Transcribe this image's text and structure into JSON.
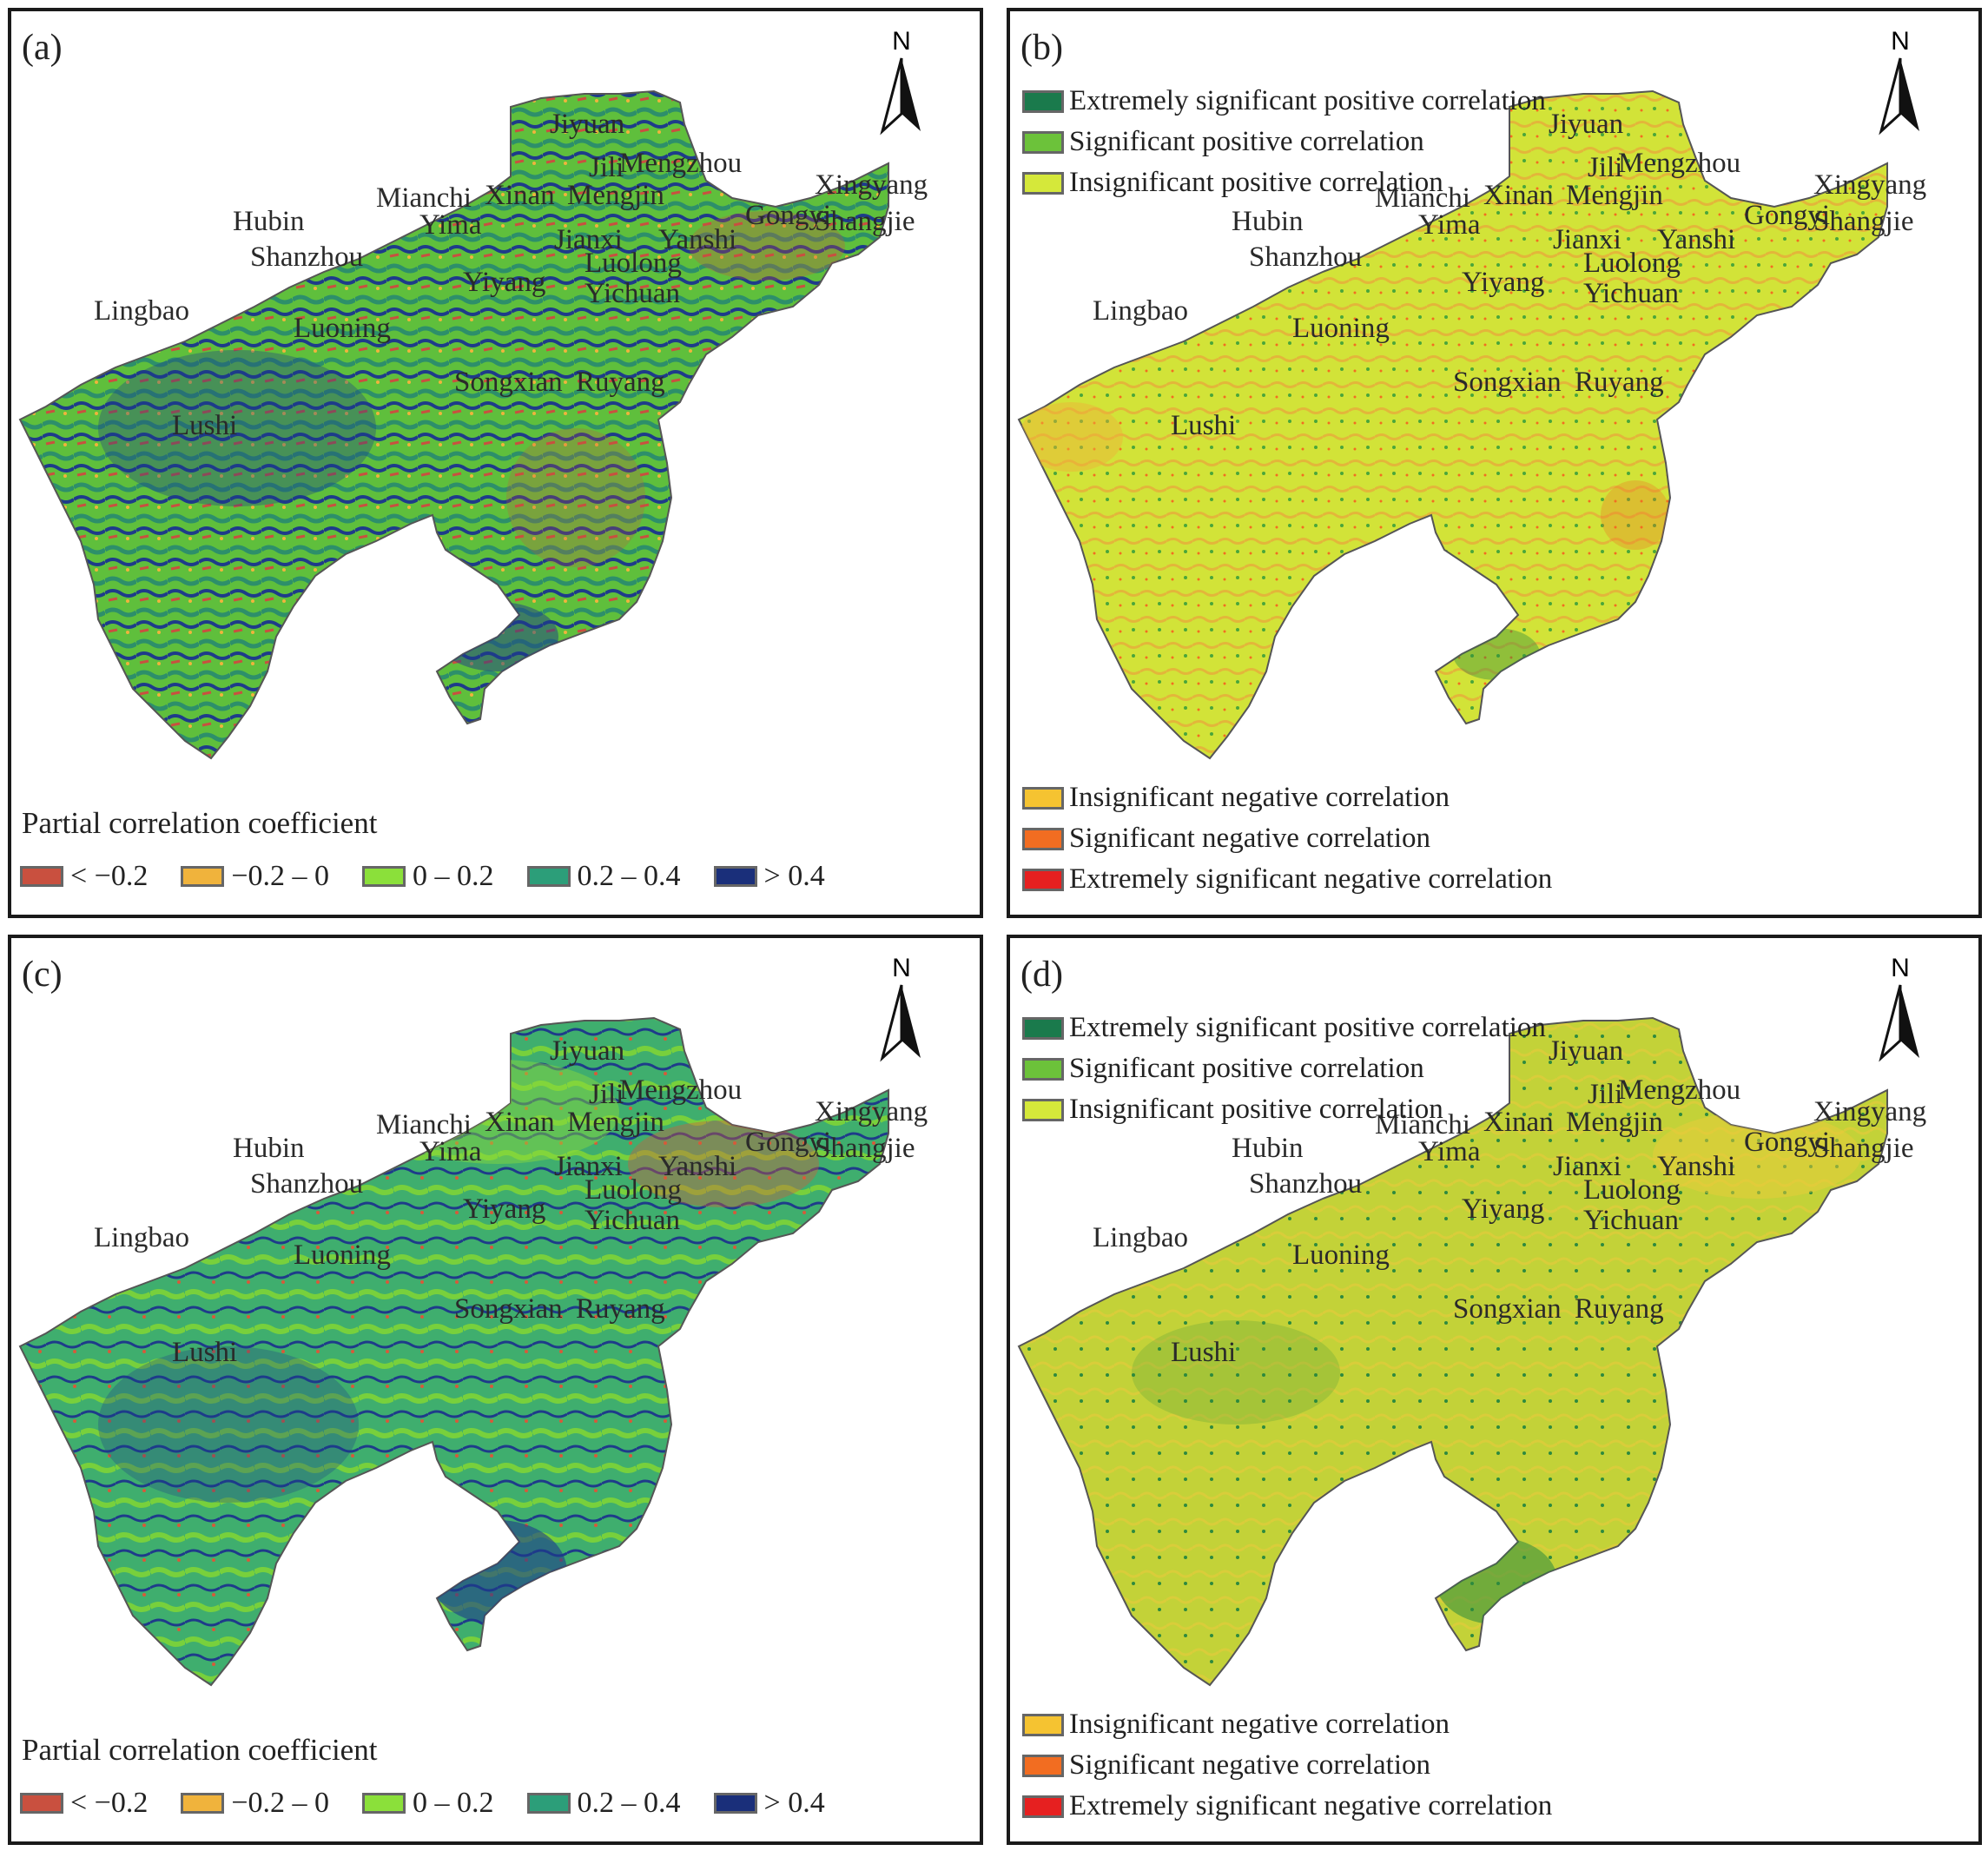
{
  "panels": [
    {
      "id": "a",
      "label": "(a)",
      "type": "coefficient",
      "fill_colors": [
        "#6cc93a",
        "#2e9a6a",
        "#1e3b8a",
        "#c9503f"
      ]
    },
    {
      "id": "b",
      "label": "(b)",
      "type": "significance",
      "fill_colors": [
        "#d4e23a",
        "#e8b43a",
        "#c7da34"
      ]
    },
    {
      "id": "c",
      "label": "(c)",
      "type": "coefficient",
      "fill_colors": [
        "#3fae6e",
        "#78d03c",
        "#1e3b8a",
        "#d65a3a"
      ]
    },
    {
      "id": "d",
      "label": "(d)",
      "type": "significance",
      "fill_colors": [
        "#c3d238",
        "#e0c83a",
        "#2e8a3e"
      ]
    }
  ],
  "north_label": "N",
  "coefficient_legend": {
    "title": "Partial correlation coefficient",
    "items": [
      {
        "label": "< −0.2",
        "color": "#c9503f"
      },
      {
        "label": "−0.2 – 0",
        "color": "#f0b33c"
      },
      {
        "label": "0 – 0.2",
        "color": "#8be03a"
      },
      {
        "label": "0.2 – 0.4",
        "color": "#2c9e79"
      },
      {
        "label": "> 0.4",
        "color": "#1a2f7a"
      }
    ]
  },
  "significance_legend": {
    "positive": [
      {
        "label": "Extremely significant positive correlation",
        "color": "#1a7a4c"
      },
      {
        "label": "Significant positive correlation",
        "color": "#6cc23a"
      },
      {
        "label": "Insignificant positive correlation",
        "color": "#d5e83a"
      }
    ],
    "negative": [
      {
        "label": "Insignificant negative correlation",
        "color": "#f5c331"
      },
      {
        "label": "Significant negative correlation",
        "color": "#f26d21"
      },
      {
        "label": "Extremely significant negative correlation",
        "color": "#e62020"
      }
    ]
  },
  "place_names": [
    "Jiyuan",
    "Jili",
    "Mengzhou",
    "Xingyang",
    "Shangjie",
    "Mianchi",
    "Xinan",
    "Mengjin",
    "Gongyi",
    "Hubin",
    "Yima",
    "Jianxi",
    "Yanshi",
    "Shanzhou",
    "Luolong",
    "Yiyang",
    "Yichuan",
    "Lingbao",
    "Luoning",
    "Songxian",
    "Ruyang",
    "Lushi"
  ]
}
